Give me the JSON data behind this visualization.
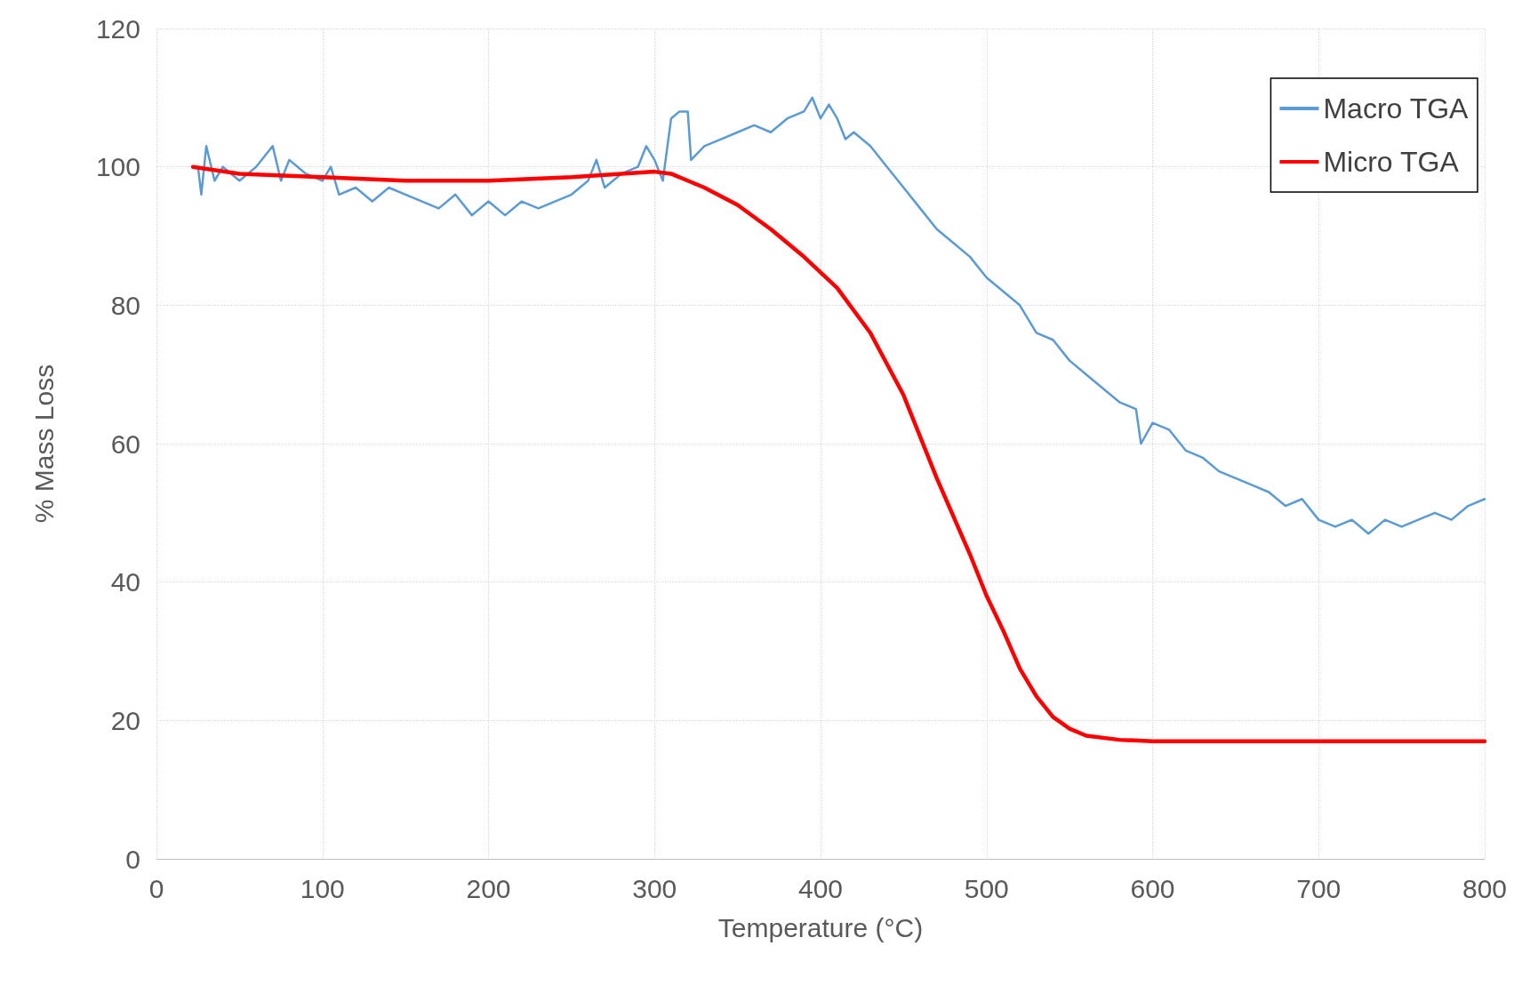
{
  "chart_data": {
    "type": "line",
    "xlabel": "Temperature (°C)",
    "ylabel": "% Mass Loss",
    "xlim": [
      0,
      800
    ],
    "ylim": [
      0,
      120
    ],
    "xticks": [
      0,
      100,
      200,
      300,
      400,
      500,
      600,
      700,
      800
    ],
    "yticks": [
      0,
      20,
      40,
      60,
      80,
      100,
      120
    ],
    "grid": true,
    "legend": "top right",
    "marker": "none",
    "line_style": "solid",
    "series": [
      {
        "name": "Macro TGA",
        "color": "#5b9bd5",
        "x": [
          25,
          27,
          30,
          35,
          40,
          50,
          60,
          70,
          75,
          80,
          90,
          100,
          105,
          110,
          120,
          130,
          140,
          150,
          160,
          170,
          180,
          190,
          200,
          210,
          220,
          230,
          240,
          250,
          260,
          265,
          270,
          280,
          290,
          295,
          300,
          305,
          310,
          315,
          320,
          322,
          330,
          340,
          350,
          360,
          370,
          380,
          390,
          395,
          400,
          405,
          410,
          415,
          420,
          430,
          440,
          450,
          460,
          470,
          480,
          490,
          500,
          510,
          520,
          530,
          540,
          550,
          560,
          570,
          580,
          590,
          593,
          600,
          610,
          620,
          630,
          640,
          650,
          660,
          670,
          680,
          690,
          700,
          710,
          720,
          730,
          740,
          750,
          760,
          770,
          780,
          790,
          800
        ],
        "values": [
          100,
          96,
          103,
          98,
          100,
          98,
          100,
          103,
          98,
          101,
          99,
          98,
          100,
          96,
          97,
          95,
          97,
          96,
          95,
          94,
          96,
          93,
          95,
          93,
          95,
          94,
          95,
          96,
          98,
          101,
          97,
          99,
          100,
          103,
          101,
          98,
          107,
          108,
          108,
          101,
          103,
          104,
          105,
          106,
          105,
          107,
          108,
          110,
          107,
          109,
          107,
          104,
          105,
          103,
          100,
          97,
          94,
          91,
          89,
          87,
          84,
          82,
          80,
          76,
          75,
          72,
          70,
          68,
          66,
          65,
          60,
          63,
          62,
          59,
          58,
          56,
          55,
          54,
          53,
          51,
          52,
          49,
          48,
          49,
          47,
          49,
          48,
          49,
          50,
          49,
          51,
          52
        ]
      },
      {
        "name": "Micro TGA",
        "color": "#ff0000",
        "x": [
          22,
          50,
          100,
          150,
          200,
          250,
          280,
          300,
          310,
          330,
          350,
          370,
          390,
          410,
          430,
          450,
          470,
          490,
          500,
          510,
          520,
          530,
          540,
          550,
          560,
          580,
          600,
          650,
          700,
          750,
          800
        ],
        "values": [
          100,
          99,
          98.5,
          98,
          98,
          98.5,
          99,
          99.3,
          99,
          97,
          94.5,
          91,
          87,
          82.5,
          76,
          67,
          55,
          44,
          38,
          33,
          27.5,
          23.5,
          20.5,
          18.8,
          17.8,
          17.2,
          17,
          17,
          17,
          17,
          17
        ]
      }
    ]
  }
}
